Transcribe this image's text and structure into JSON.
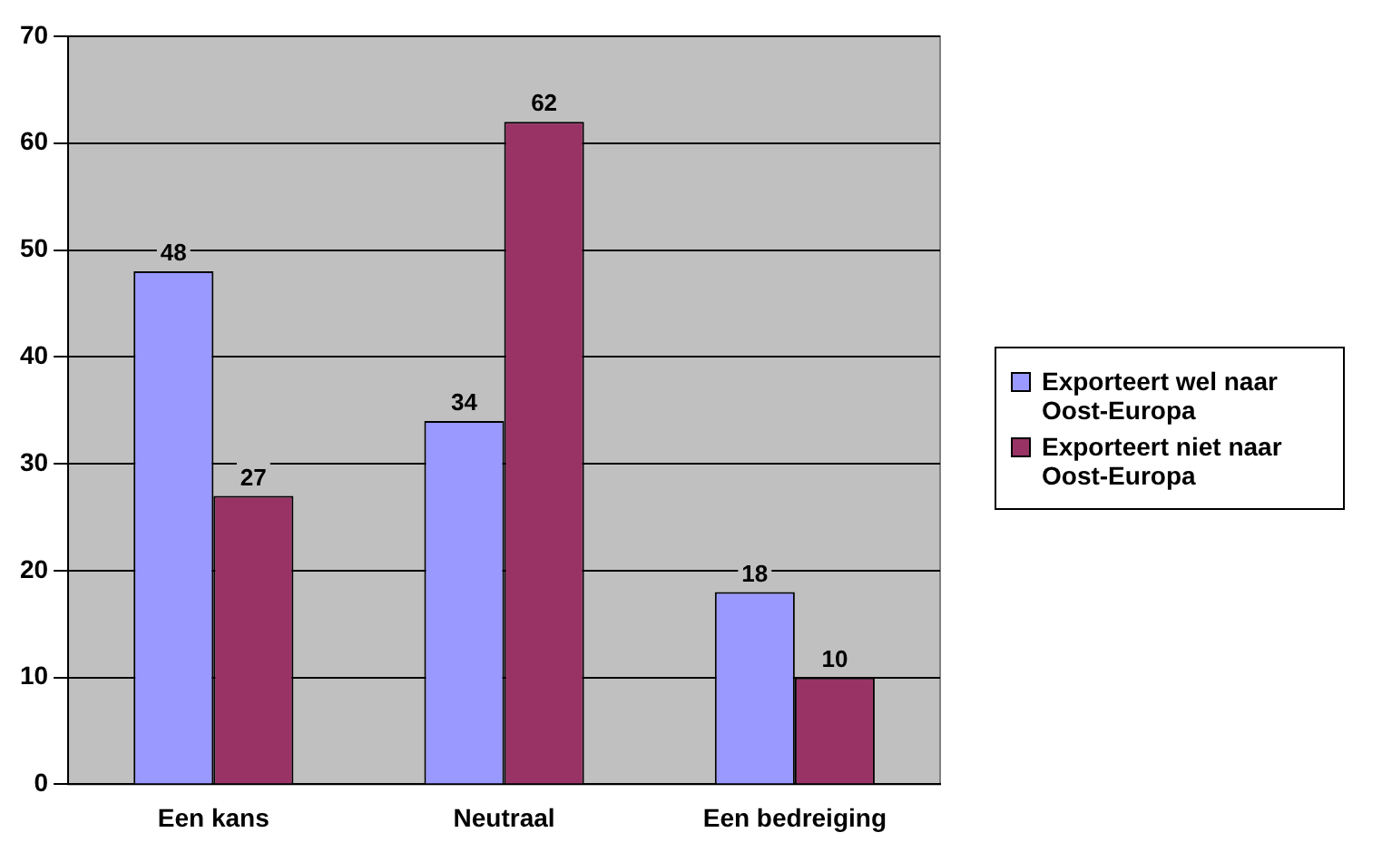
{
  "chart_data": {
    "type": "bar",
    "categories": [
      "Een kans",
      "Neutraal",
      "Een bedreiging"
    ],
    "series": [
      {
        "name": "Exporteert wel naar Oost-Europa",
        "color": "#9999ff",
        "values": [
          48,
          34,
          18
        ]
      },
      {
        "name": "Exporteert niet naar Oost-Europa",
        "color": "#993366",
        "values": [
          27,
          62,
          10
        ]
      }
    ],
    "ylim": [
      0,
      70
    ],
    "yticks": [
      0,
      10,
      20,
      30,
      40,
      50,
      60,
      70
    ],
    "grid": "y",
    "legend": "right",
    "data_labels": true
  }
}
